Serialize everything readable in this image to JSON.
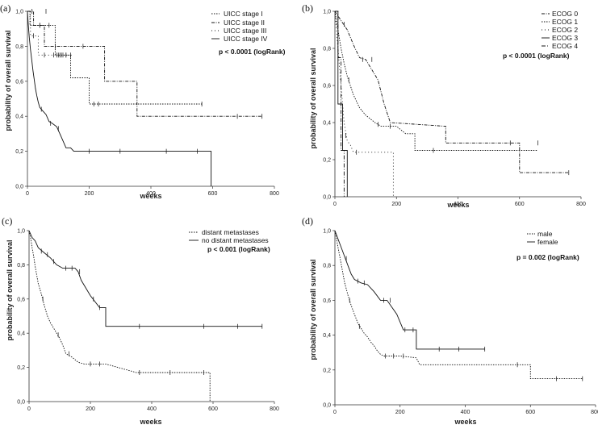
{
  "chart_data": [
    {
      "type": "line",
      "panel_label": "(a)",
      "xlabel": "weeks",
      "ylabel": "probability of overall survival",
      "xlim": [
        0,
        800
      ],
      "ylim": [
        0,
        1
      ],
      "x_ticks": [
        "0",
        "200",
        "400",
        "600",
        "800"
      ],
      "y_ticks": [
        "0,0",
        "0,2",
        "0,4",
        "0,6",
        "0,8",
        "1,0"
      ],
      "legend": [
        "UICC stage I",
        "UICC stage II",
        "UICC stage III",
        "UICC stage IV"
      ],
      "p_value": "p < 0.0001 (logRank)",
      "series": [
        {
          "name": "UICC stage I",
          "x": [
            0,
            8,
            8,
            90,
            90,
            140,
            140,
            200,
            200,
            240,
            570
          ],
          "y": [
            1.0,
            1.0,
            0.92,
            0.92,
            0.75,
            0.75,
            0.62,
            0.62,
            0.47,
            0.47,
            0.47
          ],
          "censors": [
            [
              15,
              1.0
            ],
            [
              60,
              1.0
            ],
            [
              40,
              0.92
            ],
            [
              70,
              0.92
            ],
            [
              100,
              0.75
            ],
            [
              110,
              0.75
            ],
            [
              125,
              0.75
            ],
            [
              215,
              0.47
            ],
            [
              230,
              0.47
            ],
            [
              565,
              0.47
            ]
          ]
        },
        {
          "name": "UICC stage II",
          "x": [
            0,
            20,
            20,
            55,
            55,
            130,
            130,
            250,
            250,
            355,
            355,
            760
          ],
          "y": [
            1.0,
            1.0,
            0.92,
            0.92,
            0.8,
            0.8,
            0.8,
            0.8,
            0.6,
            0.6,
            0.4,
            0.4
          ],
          "censors": [
            [
              40,
              0.92
            ],
            [
              90,
              0.8
            ],
            [
              180,
              0.8
            ],
            [
              680,
              0.4
            ],
            [
              760,
              0.4
            ]
          ]
        },
        {
          "name": "UICC stage III",
          "x": [
            0,
            10,
            10,
            35,
            35,
            80,
            80,
            145
          ],
          "y": [
            1.0,
            1.0,
            0.86,
            0.86,
            0.75,
            0.75,
            0.75,
            0.75
          ],
          "censors": [
            [
              20,
              0.86
            ],
            [
              55,
              0.75
            ],
            [
              85,
              0.75
            ],
            [
              95,
              0.75
            ],
            [
              105,
              0.75
            ],
            [
              115,
              0.75
            ],
            [
              125,
              0.75
            ],
            [
              140,
              0.75
            ]
          ]
        },
        {
          "name": "UICC stage IV",
          "x": [
            0,
            3,
            6,
            10,
            14,
            18,
            22,
            26,
            30,
            35,
            40,
            50,
            60,
            70,
            80,
            95,
            110,
            125,
            140,
            150,
            595,
            595
          ],
          "y": [
            1.0,
            0.92,
            0.85,
            0.78,
            0.72,
            0.66,
            0.61,
            0.56,
            0.52,
            0.48,
            0.45,
            0.43,
            0.41,
            0.37,
            0.36,
            0.34,
            0.28,
            0.22,
            0.22,
            0.2,
            0.2,
            0.0
          ],
          "censors": [
            [
              45,
              0.44
            ],
            [
              75,
              0.36
            ],
            [
              100,
              0.33
            ],
            [
              200,
              0.2
            ],
            [
              300,
              0.2
            ],
            [
              450,
              0.2
            ],
            [
              550,
              0.2
            ]
          ]
        }
      ]
    },
    {
      "type": "line",
      "panel_label": "(b)",
      "xlabel": "weeks",
      "ylabel": "probability of overall survival",
      "xlim": [
        0,
        800
      ],
      "ylim": [
        0,
        1
      ],
      "x_ticks": [
        "0",
        "200",
        "400",
        "600",
        "800"
      ],
      "y_ticks": [
        "0,0",
        "0,2",
        "0,4",
        "0,6",
        "0,8",
        "1,0"
      ],
      "legend": [
        "ECOG 0",
        "ECOG 1",
        "ECOG 2",
        "ECOG 3",
        "ECOG 4"
      ],
      "p_value": "p < 0.0001 (logRank)",
      "series": [
        {
          "name": "ECOG 0",
          "x": [
            0,
            20,
            40,
            60,
            80,
            100,
            140,
            160,
            180,
            360,
            360,
            600,
            600,
            760
          ],
          "y": [
            1.0,
            0.95,
            0.9,
            0.82,
            0.75,
            0.74,
            0.63,
            0.5,
            0.4,
            0.38,
            0.29,
            0.29,
            0.13,
            0.13
          ],
          "censors": [
            [
              30,
              0.93
            ],
            [
              90,
              0.74
            ],
            [
              120,
              0.74
            ],
            [
              570,
              0.29
            ],
            [
              660,
              0.29
            ],
            [
              760,
              0.13
            ]
          ]
        },
        {
          "name": "ECOG 1",
          "x": [
            0,
            10,
            20,
            30,
            40,
            50,
            60,
            80,
            100,
            130,
            150,
            170,
            200,
            230,
            260,
            260,
            660
          ],
          "y": [
            1.0,
            0.9,
            0.8,
            0.72,
            0.65,
            0.6,
            0.55,
            0.48,
            0.44,
            0.4,
            0.38,
            0.38,
            0.38,
            0.34,
            0.34,
            0.25,
            0.25
          ],
          "censors": [
            [
              45,
              0.63
            ],
            [
              140,
              0.39
            ],
            [
              180,
              0.38
            ],
            [
              320,
              0.25
            ]
          ]
        },
        {
          "name": "ECOG 2",
          "x": [
            0,
            5,
            10,
            15,
            20,
            25,
            30,
            40,
            50,
            60,
            60,
            190,
            190
          ],
          "y": [
            1.0,
            0.9,
            0.8,
            0.7,
            0.6,
            0.5,
            0.4,
            0.3,
            0.28,
            0.24,
            0.24,
            0.24,
            0.0
          ],
          "censors": [
            [
              35,
              0.33
            ],
            [
              70,
              0.24
            ]
          ]
        },
        {
          "name": "ECOG 3",
          "x": [
            0,
            10,
            10,
            25,
            25,
            40,
            40
          ],
          "y": [
            1.0,
            1.0,
            0.5,
            0.5,
            0.25,
            0.25,
            0.0
          ],
          "censors": [
            [
              20,
              0.5
            ]
          ]
        },
        {
          "name": "ECOG 4",
          "x": [
            0,
            10,
            10,
            20,
            20,
            30,
            30
          ],
          "y": [
            1.0,
            1.0,
            0.75,
            0.75,
            0.25,
            0.25,
            0.0
          ],
          "censors": []
        }
      ]
    },
    {
      "type": "line",
      "panel_label": "(c)",
      "xlabel": "weeks",
      "ylabel": "probability of overall survival",
      "xlim": [
        0,
        800
      ],
      "ylim": [
        0,
        1
      ],
      "x_ticks": [
        "0",
        "200",
        "400",
        "600",
        "800"
      ],
      "y_ticks": [
        "0,0",
        "0,2",
        "0,4",
        "0,6",
        "0,8",
        "1,0"
      ],
      "legend": [
        "distant metastases",
        "no distant metastases"
      ],
      "p_value": "p < 0.001 (logRank)",
      "series": [
        {
          "name": "distant metastases",
          "x": [
            0,
            5,
            10,
            15,
            20,
            25,
            30,
            40,
            50,
            60,
            70,
            80,
            90,
            100,
            110,
            120,
            140,
            160,
            180,
            200,
            250,
            350,
            450,
            590,
            590
          ],
          "y": [
            1.0,
            0.96,
            0.9,
            0.85,
            0.79,
            0.74,
            0.69,
            0.63,
            0.56,
            0.5,
            0.46,
            0.43,
            0.4,
            0.37,
            0.33,
            0.28,
            0.26,
            0.23,
            0.22,
            0.22,
            0.22,
            0.17,
            0.17,
            0.17,
            0.0
          ],
          "censors": [
            [
              45,
              0.6
            ],
            [
              95,
              0.39
            ],
            [
              130,
              0.28
            ],
            [
              200,
              0.22
            ],
            [
              230,
              0.22
            ],
            [
              360,
              0.17
            ],
            [
              460,
              0.17
            ],
            [
              570,
              0.17
            ]
          ]
        },
        {
          "name": "no distant metastases",
          "x": [
            0,
            10,
            20,
            30,
            50,
            70,
            90,
            110,
            150,
            160,
            170,
            200,
            230,
            250,
            250,
            760
          ],
          "y": [
            1.0,
            0.96,
            0.94,
            0.9,
            0.87,
            0.84,
            0.8,
            0.78,
            0.78,
            0.76,
            0.71,
            0.62,
            0.55,
            0.55,
            0.44,
            0.44
          ],
          "censors": [
            [
              40,
              0.88
            ],
            [
              60,
              0.86
            ],
            [
              80,
              0.82
            ],
            [
              120,
              0.78
            ],
            [
              140,
              0.78
            ],
            [
              165,
              0.76
            ],
            [
              210,
              0.6
            ],
            [
              230,
              0.55
            ],
            [
              360,
              0.44
            ],
            [
              570,
              0.44
            ],
            [
              680,
              0.44
            ],
            [
              760,
              0.44
            ]
          ]
        }
      ]
    },
    {
      "type": "line",
      "panel_label": "(d)",
      "xlabel": "weeks",
      "ylabel": "probability of overall survival",
      "xlim": [
        0,
        800
      ],
      "ylim": [
        0,
        1
      ],
      "x_ticks": [
        "0",
        "200",
        "400",
        "600",
        "800"
      ],
      "y_ticks": [
        "0,0",
        "0,2",
        "0,4",
        "0,6",
        "0,8",
        "1,0"
      ],
      "legend": [
        "male",
        "female"
      ],
      "p_value": "p = 0.002 (logRank)",
      "series": [
        {
          "name": "male",
          "x": [
            0,
            5,
            10,
            15,
            20,
            25,
            30,
            40,
            50,
            60,
            70,
            80,
            90,
            100,
            110,
            120,
            130,
            140,
            150,
            160,
            200,
            250,
            260,
            560,
            600,
            600,
            760
          ],
          "y": [
            1.0,
            0.95,
            0.9,
            0.85,
            0.8,
            0.75,
            0.7,
            0.63,
            0.57,
            0.52,
            0.47,
            0.44,
            0.41,
            0.39,
            0.36,
            0.34,
            0.31,
            0.29,
            0.28,
            0.28,
            0.28,
            0.27,
            0.23,
            0.23,
            0.23,
            0.15,
            0.15
          ],
          "censors": [
            [
              45,
              0.6
            ],
            [
              75,
              0.45
            ],
            [
              155,
              0.28
            ],
            [
              180,
              0.28
            ],
            [
              210,
              0.28
            ],
            [
              560,
              0.23
            ],
            [
              680,
              0.15
            ],
            [
              760,
              0.15
            ]
          ]
        },
        {
          "name": "female",
          "x": [
            0,
            10,
            20,
            30,
            40,
            50,
            60,
            80,
            100,
            120,
            140,
            160,
            190,
            210,
            230,
            250,
            250,
            460
          ],
          "y": [
            1.0,
            0.95,
            0.9,
            0.85,
            0.8,
            0.75,
            0.72,
            0.7,
            0.69,
            0.65,
            0.6,
            0.6,
            0.52,
            0.43,
            0.43,
            0.43,
            0.32,
            0.32
          ],
          "censors": [
            [
              35,
              0.84
            ],
            [
              70,
              0.71
            ],
            [
              90,
              0.7
            ],
            [
              150,
              0.6
            ],
            [
              170,
              0.6
            ],
            [
              215,
              0.43
            ],
            [
              240,
              0.43
            ],
            [
              320,
              0.32
            ],
            [
              380,
              0.32
            ],
            [
              460,
              0.32
            ]
          ]
        }
      ]
    }
  ]
}
